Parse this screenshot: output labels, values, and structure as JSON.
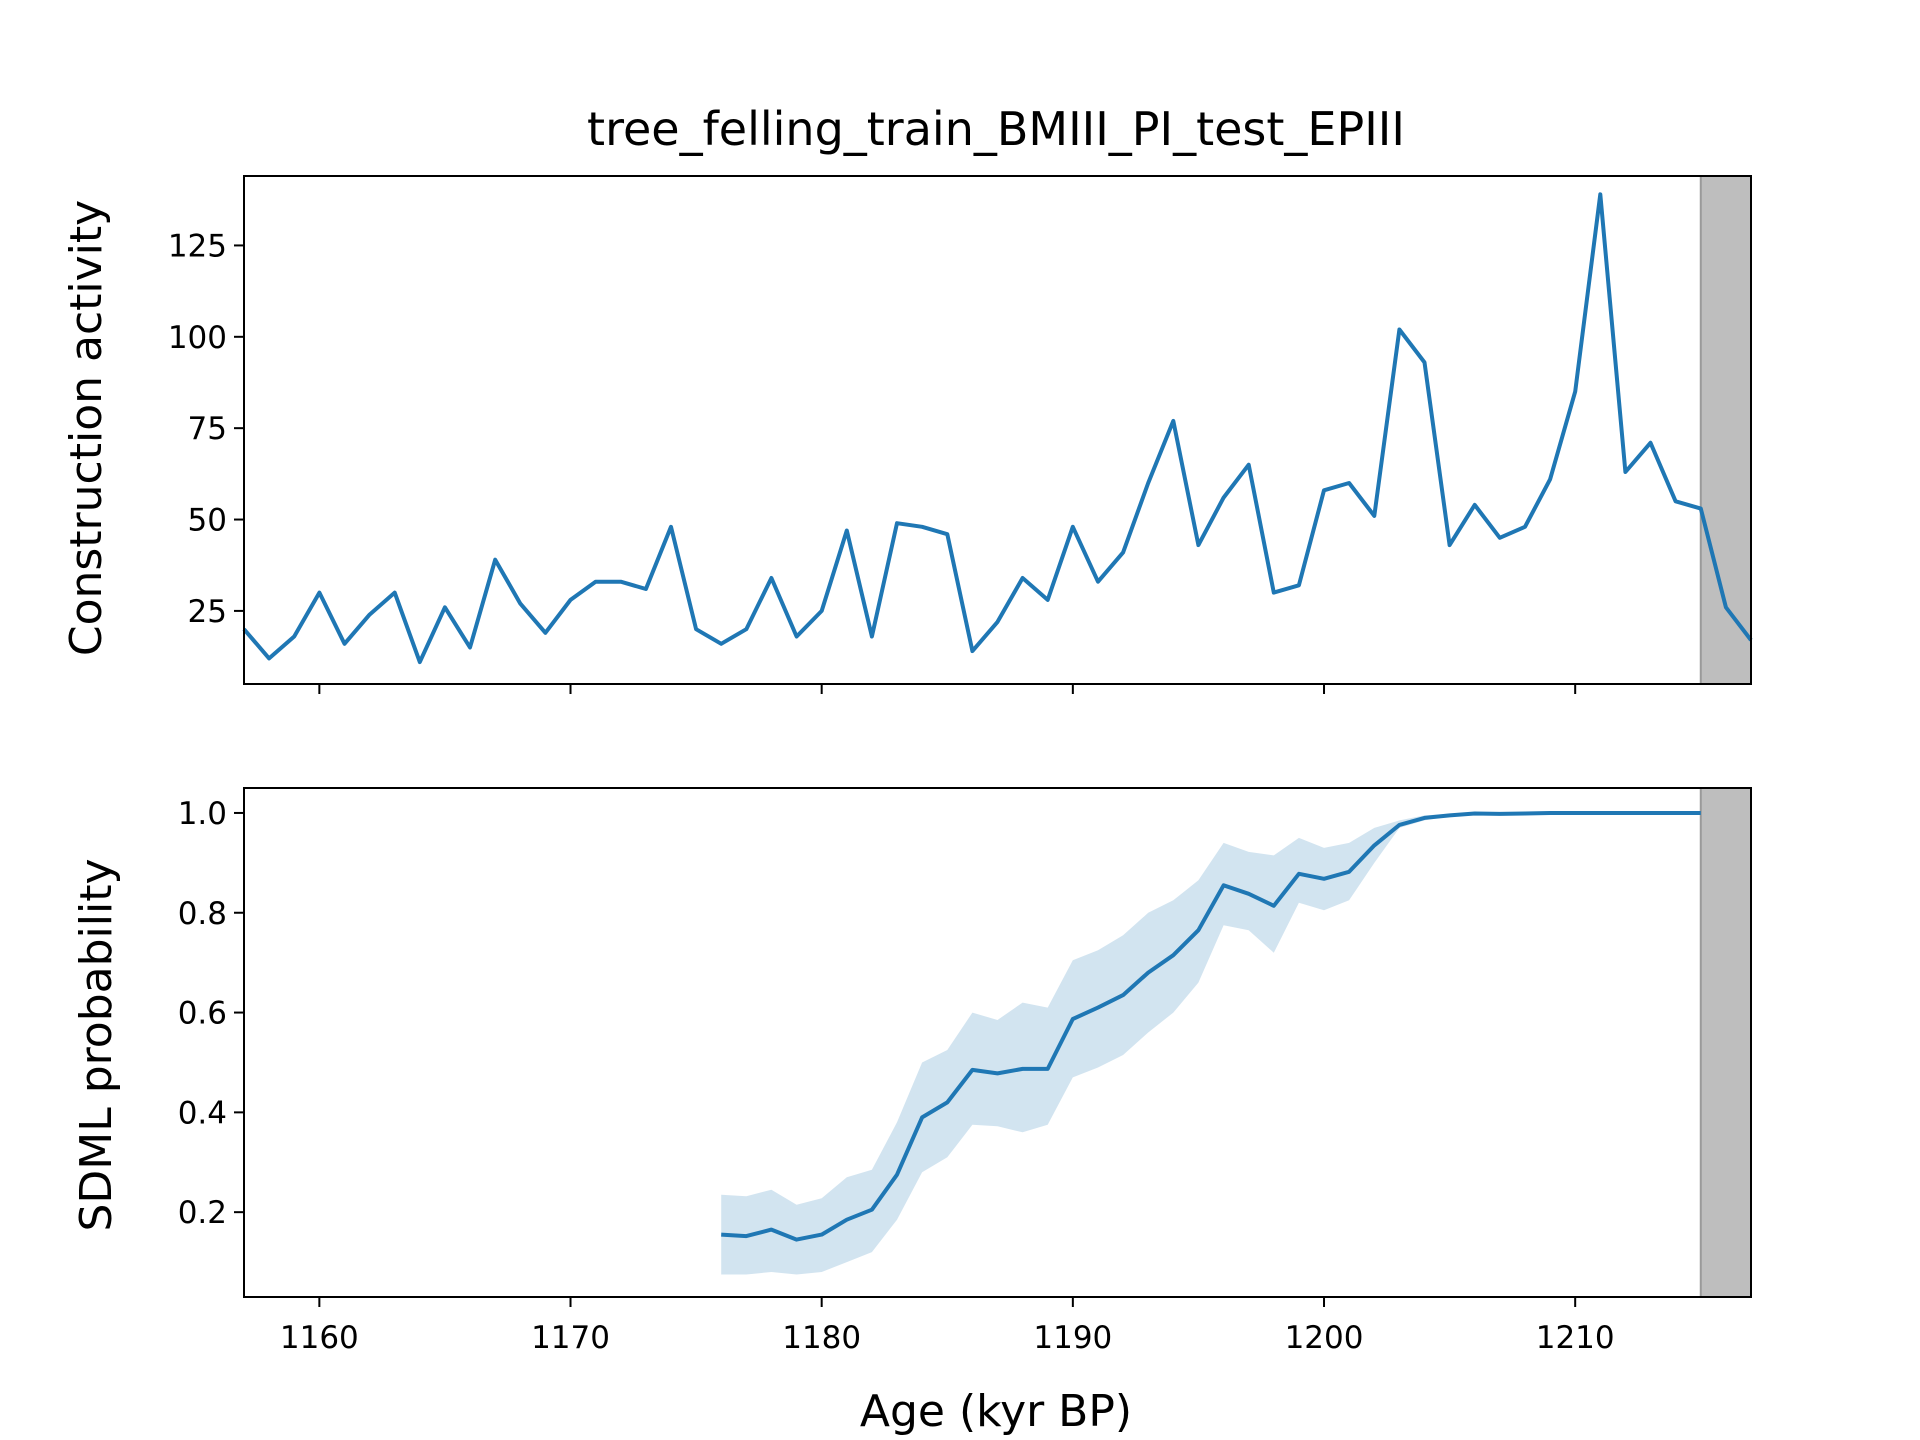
{
  "chart_data": [
    {
      "type": "line",
      "title": "tree_felling_train_BMIII_PI_test_EPIII",
      "xlabel": "",
      "ylabel": "Construction activity",
      "xlim": [
        1157,
        1217
      ],
      "ylim": [
        5,
        144
      ],
      "x_ticks": [
        1160,
        1170,
        1180,
        1190,
        1200,
        1210
      ],
      "y_ticks": [
        25,
        50,
        75,
        100,
        125
      ],
      "y_tick_labels": [
        "25",
        "50",
        "75",
        "100",
        "125"
      ],
      "shaded_region": [
        1215,
        1217
      ],
      "grid": false,
      "series": [
        {
          "x": [
            1157,
            1158,
            1159,
            1160,
            1161,
            1162,
            1163,
            1164,
            1165,
            1166,
            1167,
            1168,
            1169,
            1170,
            1171,
            1172,
            1173,
            1174,
            1175,
            1176,
            1177,
            1178,
            1179,
            1180,
            1181,
            1182,
            1183,
            1184,
            1185,
            1186,
            1187,
            1188,
            1189,
            1190,
            1191,
            1192,
            1193,
            1194,
            1195,
            1196,
            1197,
            1198,
            1199,
            1200,
            1201,
            1202,
            1203,
            1204,
            1205,
            1206,
            1207,
            1208,
            1209,
            1210,
            1211,
            1212,
            1213,
            1214,
            1215,
            1216,
            1217
          ],
          "values": [
            20,
            12,
            18,
            30,
            16,
            24,
            30,
            11,
            26,
            15,
            39,
            27,
            19,
            28,
            33,
            33,
            31,
            48,
            20,
            16,
            20,
            34,
            18,
            25,
            47,
            18,
            49,
            48,
            46,
            14,
            22,
            34,
            28,
            48,
            33,
            41,
            60,
            77,
            43,
            56,
            65,
            30,
            32,
            58,
            60,
            51,
            102,
            93,
            43,
            54,
            45,
            48,
            61,
            85,
            139,
            63,
            71,
            55,
            53,
            26,
            17
          ]
        }
      ]
    },
    {
      "type": "line",
      "title": "",
      "xlabel": "Age (kyr BP)",
      "ylabel": "SDML probability",
      "xlim": [
        1157,
        1217
      ],
      "ylim": [
        0.03,
        1.05
      ],
      "x_ticks": [
        1160,
        1170,
        1180,
        1190,
        1200,
        1210
      ],
      "x_tick_labels": [
        "1160",
        "1170",
        "1180",
        "1190",
        "1200",
        "1210"
      ],
      "y_ticks": [
        0.2,
        0.4,
        0.6,
        0.8,
        1.0
      ],
      "y_tick_labels": [
        "0.2",
        "0.4",
        "0.6",
        "0.8",
        "1.0"
      ],
      "shaded_region": [
        1215,
        1217
      ],
      "grid": false,
      "series": [
        {
          "x": [
            1176,
            1177,
            1178,
            1179,
            1180,
            1181,
            1182,
            1183,
            1184,
            1185,
            1186,
            1187,
            1188,
            1189,
            1190,
            1191,
            1192,
            1193,
            1194,
            1195,
            1196,
            1197,
            1198,
            1199,
            1200,
            1201,
            1202,
            1203,
            1204,
            1205,
            1206,
            1207,
            1208,
            1209,
            1210,
            1211,
            1212,
            1213,
            1214,
            1215
          ],
          "values": [
            0.155,
            0.152,
            0.165,
            0.145,
            0.155,
            0.185,
            0.205,
            0.275,
            0.39,
            0.42,
            0.485,
            0.478,
            0.487,
            0.487,
            0.587,
            0.61,
            0.635,
            0.68,
            0.715,
            0.765,
            0.855,
            0.838,
            0.814,
            0.878,
            0.868,
            0.882,
            0.935,
            0.976,
            0.99,
            0.995,
            0.999,
            0.998,
            0.999,
            1.0,
            1.0,
            1.0,
            1.0,
            1.0,
            1.0,
            1.0
          ],
          "lower": [
            0.075,
            0.075,
            0.08,
            0.075,
            0.08,
            0.1,
            0.12,
            0.185,
            0.28,
            0.31,
            0.375,
            0.372,
            0.36,
            0.375,
            0.47,
            0.49,
            0.515,
            0.56,
            0.6,
            0.66,
            0.775,
            0.765,
            0.72,
            0.82,
            0.805,
            0.825,
            0.9,
            0.97,
            0.985,
            0.993,
            0.998,
            0.997,
            0.998,
            0.999,
            1.0,
            1.0,
            1.0,
            1.0,
            1.0,
            1.0
          ],
          "upper": [
            0.235,
            0.232,
            0.245,
            0.215,
            0.228,
            0.27,
            0.285,
            0.38,
            0.5,
            0.525,
            0.6,
            0.585,
            0.62,
            0.61,
            0.705,
            0.725,
            0.755,
            0.8,
            0.825,
            0.865,
            0.94,
            0.922,
            0.915,
            0.95,
            0.93,
            0.94,
            0.97,
            0.985,
            0.995,
            0.998,
            1.0,
            1.0,
            1.0,
            1.0,
            1.0,
            1.0,
            1.0,
            1.0,
            1.0,
            1.0
          ]
        }
      ]
    }
  ]
}
